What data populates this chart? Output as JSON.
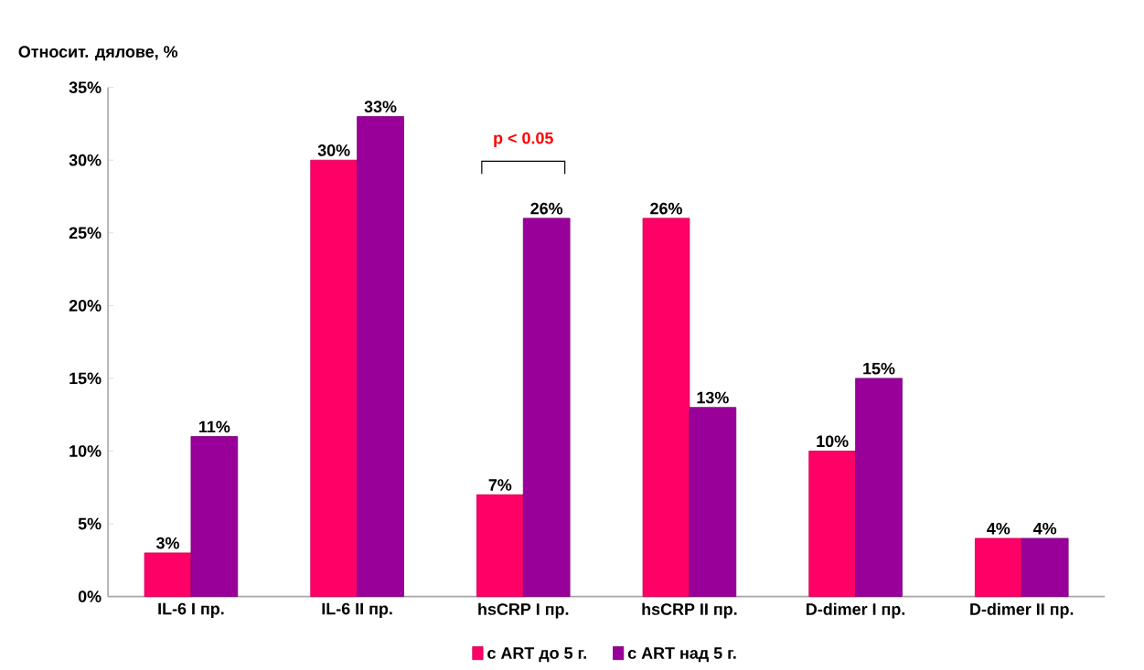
{
  "chart_data": {
    "type": "bar",
    "ylabel": "Относит. дялове, %",
    "categories": [
      "IL-6 I пр.",
      "IL-6 II пр.",
      "hsCRP I пр.",
      "hsCRP II пр.",
      "D-dimer I пр.",
      "D-dimer II пр."
    ],
    "series": [
      {
        "name": "с ART до 5 г.",
        "color": "#ff0066",
        "values": [
          3,
          30,
          7,
          26,
          10,
          4
        ],
        "value_labels": [
          "3%",
          "30%",
          "7%",
          "26%",
          "10%",
          "4%"
        ]
      },
      {
        "name": "с ART над 5 г.",
        "color": "#990099",
        "values": [
          11,
          33,
          26,
          13,
          15,
          4
        ],
        "value_labels": [
          "11%",
          "33%",
          "26%",
          "13%",
          "15%",
          "4%"
        ]
      }
    ],
    "ylim": [
      0,
      35
    ],
    "yticks": [
      {
        "value": 0,
        "label": "0%"
      },
      {
        "value": 5,
        "label": "5%"
      },
      {
        "value": 10,
        "label": "10%"
      },
      {
        "value": 15,
        "label": "15%"
      },
      {
        "value": 20,
        "label": "20%"
      },
      {
        "value": 25,
        "label": "25%"
      },
      {
        "value": 30,
        "label": "30%"
      },
      {
        "value": 35,
        "label": "35%"
      }
    ],
    "annotations": [
      "p < 0.05"
    ],
    "grid": false,
    "legend": "bottom"
  }
}
